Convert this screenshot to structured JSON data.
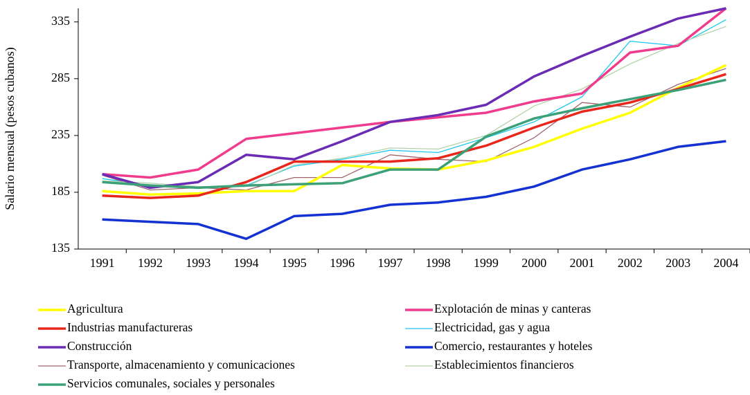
{
  "chart_data": {
    "type": "line",
    "y_label": "Salario mensual (pesos cubanos)",
    "categories": [
      "1991",
      "1992",
      "1993",
      "1994",
      "1995",
      "1996",
      "1997",
      "1998",
      "1999",
      "2000",
      "2001",
      "2002",
      "2003",
      "2004"
    ],
    "ylim": [
      135,
      347
    ],
    "yticks": [
      135,
      185,
      235,
      285,
      335
    ],
    "series": [
      {
        "name": "Agricultura",
        "color": "#ffff00",
        "line_width": 3.5,
        "values": [
          186,
          183,
          184,
          186,
          186,
          209,
          206,
          205,
          213,
          225,
          241,
          255,
          277,
          297
        ]
      },
      {
        "name": "Explotación de minas y canteras",
        "color": "#f03c8c",
        "line_width": 3.5,
        "values": [
          201,
          198,
          205,
          232,
          237,
          242,
          247,
          251,
          255,
          265,
          272,
          308,
          314,
          347
        ]
      },
      {
        "name": "Industrias manufactureras",
        "color": "#e8261c",
        "line_width": 3.5,
        "values": [
          182,
          180,
          182,
          194,
          212,
          212,
          212,
          215,
          226,
          242,
          256,
          264,
          276,
          289
        ]
      },
      {
        "name": "Electricidad, gas y agua",
        "color": "#1ec8f0",
        "line_width": 1.3,
        "values": [
          197,
          191,
          189,
          191,
          208,
          214,
          222,
          220,
          233,
          247,
          269,
          318,
          314,
          337
        ]
      },
      {
        "name": "Construcción",
        "color": "#6a2cb4",
        "line_width": 3.5,
        "values": [
          201,
          189,
          194,
          218,
          214,
          230,
          247,
          253,
          262,
          287,
          305,
          322,
          338,
          347
        ]
      },
      {
        "name": "Comercio, restaurantes y hoteles",
        "color": "#1432d2",
        "line_width": 3.5,
        "values": [
          161,
          159,
          157,
          144,
          164,
          166,
          174,
          176,
          181,
          190,
          205,
          214,
          225,
          230
        ]
      },
      {
        "name": "Transporte, almacenamiento y comunicaciones",
        "color": "#a0646e",
        "line_width": 1.3,
        "values": [
          200,
          187,
          189,
          187,
          198,
          198,
          218,
          214,
          212,
          233,
          264,
          260,
          280,
          294
        ]
      },
      {
        "name": "Establecimientos financieros",
        "color": "#b4d2aa",
        "line_width": 1.3,
        "values": [
          195,
          193,
          190,
          190,
          209,
          215,
          224,
          223,
          235,
          261,
          276,
          298,
          316,
          331
        ]
      },
      {
        "name": "Servicios comunales, sociales y personales",
        "color": "#3ca078",
        "line_width": 3.5,
        "values": [
          194,
          191,
          189,
          191,
          192,
          193,
          205,
          205,
          234,
          250,
          259,
          267,
          275,
          284
        ]
      }
    ]
  }
}
